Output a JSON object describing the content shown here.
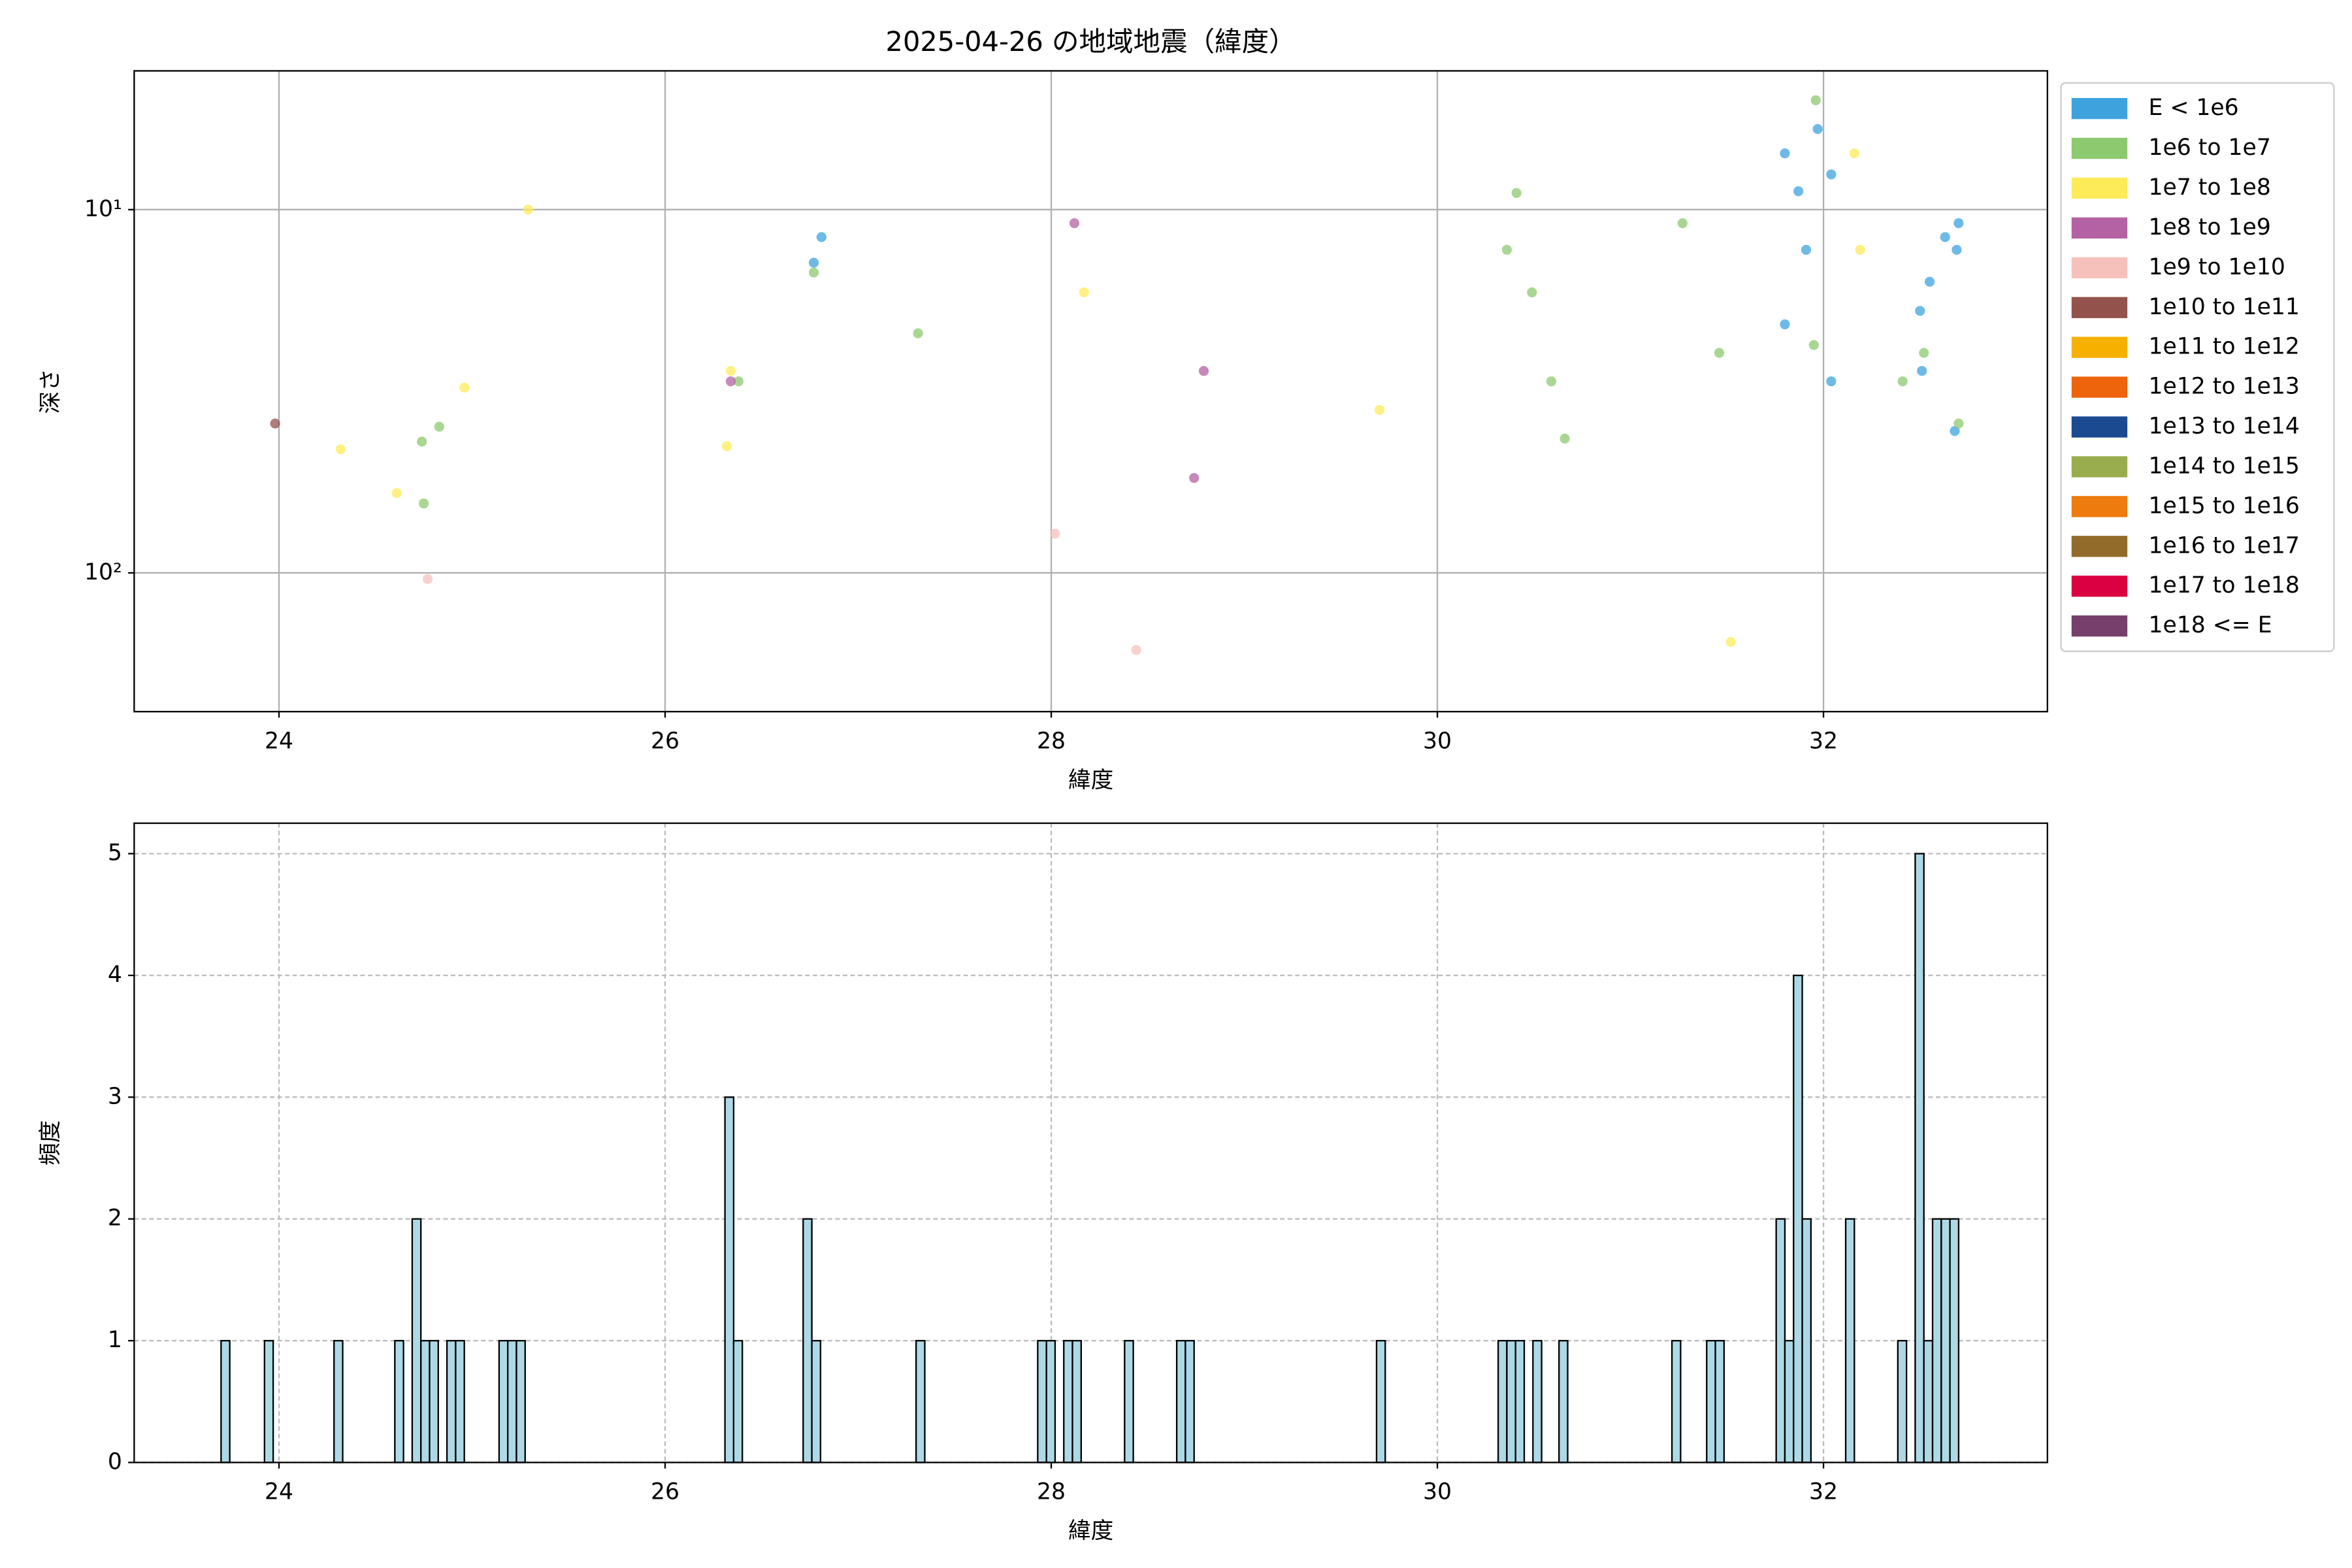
{
  "chart_data": [
    {
      "type": "scatter",
      "title": "2025-04-26 の地域地震（緯度）",
      "xlabel": "緯度",
      "ylabel": "深さ",
      "xlim": [
        23.25,
        33.16
      ],
      "xticks": [
        24,
        26,
        28,
        30,
        32
      ],
      "ylim": [
        241,
        4.15
      ],
      "yscale": "log",
      "yticks": [
        {
          "value": 10,
          "label": "10¹"
        },
        {
          "value": 100,
          "label": "10²"
        }
      ],
      "grid": true,
      "legend": "outside-right",
      "series": [
        {
          "name": "E < 1e6",
          "color": "#3ea3dd",
          "x": [
            26.77,
            26.81,
            31.8,
            31.97,
            31.87,
            32.04,
            31.91,
            31.8,
            32.04,
            32.63,
            32.7,
            32.69,
            32.55,
            32.5,
            32.51,
            32.68
          ],
          "values": [
            14.0,
            11.9,
            7.0,
            6.0,
            8.9,
            8.0,
            12.9,
            20.7,
            29.7,
            11.9,
            10.9,
            12.9,
            15.8,
            19.0,
            27.8,
            40.7
          ]
        },
        {
          "name": "1e6 to 1e7",
          "color": "#8cc96f",
          "x": [
            24.74,
            24.83,
            24.75,
            26.38,
            26.77,
            27.31,
            30.36,
            30.41,
            30.49,
            30.59,
            30.66,
            31.27,
            31.46,
            31.96,
            31.95,
            32.41,
            32.52,
            32.7
          ],
          "values": [
            43.5,
            39.6,
            64.4,
            29.7,
            14.9,
            21.9,
            12.9,
            9.0,
            16.9,
            29.7,
            42.7,
            10.9,
            24.8,
            5.0,
            23.6,
            29.7,
            24.8,
            38.8
          ]
        },
        {
          "name": "1e7 to 1e8",
          "color": "#fdeb5a",
          "x": [
            25.29,
            24.96,
            24.32,
            24.61,
            26.34,
            26.32,
            28.17,
            29.7,
            31.52,
            32.16,
            32.19
          ],
          "values": [
            10.0,
            30.9,
            45.7,
            60.3,
            27.8,
            44.8,
            16.9,
            35.6,
            155,
            7.0,
            12.9
          ]
        },
        {
          "name": "1e8 to 1e9",
          "color": "#b462a3",
          "x": [
            26.34,
            28.12,
            28.79,
            28.74
          ],
          "values": [
            29.7,
            10.9,
            27.8,
            54.8
          ]
        },
        {
          "name": "1e9 to 1e10",
          "color": "#f6c1bb",
          "x": [
            24.77,
            28.02,
            28.44
          ],
          "values": [
            104,
            78.0,
            163
          ]
        },
        {
          "name": "1e10 to 1e11",
          "color": "#94524c",
          "x": [
            23.98
          ],
          "values": [
            38.8
          ]
        },
        {
          "name": "1e11 to 1e12",
          "color": "#f6b100",
          "x": [],
          "values": []
        },
        {
          "name": "1e12 to 1e13",
          "color": "#ee640c",
          "x": [],
          "values": []
        },
        {
          "name": "1e13 to 1e14",
          "color": "#1c4a91",
          "x": [],
          "values": []
        },
        {
          "name": "1e14 to 1e15",
          "color": "#9aad4e",
          "x": [],
          "values": []
        },
        {
          "name": "1e15 to 1e16",
          "color": "#ee7b0e",
          "x": [],
          "values": []
        },
        {
          "name": "1e16 to 1e17",
          "color": "#926a2a",
          "x": [],
          "values": []
        },
        {
          "name": "1e17 to 1e18",
          "color": "#db0041",
          "x": [],
          "values": []
        },
        {
          "name": "1e18 <= E",
          "color": "#773f6b",
          "x": [],
          "values": []
        }
      ]
    },
    {
      "type": "histogram",
      "xlabel": "緯度",
      "ylabel": "頻度",
      "color": "#add8e6",
      "xlim": [
        23.25,
        33.16
      ],
      "xticks": [
        24,
        26,
        28,
        30,
        32
      ],
      "ylim": [
        0,
        5.25
      ],
      "yticks": [
        0,
        1,
        2,
        3,
        4,
        5
      ],
      "grid": true,
      "bins": [
        23.7,
        23.745,
        23.79,
        23.835,
        23.88,
        23.925,
        23.97,
        24.015,
        24.06,
        24.105,
        24.15,
        24.195,
        24.24,
        24.285,
        24.33,
        24.375,
        24.42,
        24.465,
        24.51,
        24.555,
        24.6,
        24.645,
        24.69,
        24.735,
        24.78,
        24.825,
        24.87,
        24.915,
        24.96,
        25.005,
        25.05,
        25.095,
        25.14,
        25.185,
        25.23,
        25.275,
        25.32,
        25.365,
        25.41,
        25.455,
        25.5,
        25.545,
        25.59,
        25.635,
        25.68,
        25.725,
        25.77,
        25.815,
        25.86,
        25.905,
        25.95,
        25.995,
        26.04,
        26.085,
        26.13,
        26.175,
        26.22,
        26.265,
        26.31,
        26.355,
        26.4,
        26.445,
        26.49,
        26.535,
        26.58,
        26.625,
        26.67,
        26.715,
        26.76,
        26.805,
        26.85,
        26.895,
        26.94,
        26.985,
        27.03,
        27.075,
        27.12,
        27.165,
        27.21,
        27.255,
        27.3,
        27.345,
        27.39,
        27.435,
        27.48,
        27.525,
        27.57,
        27.615,
        27.66,
        27.705,
        27.75,
        27.795,
        27.84,
        27.885,
        27.93,
        27.975,
        28.02,
        28.065,
        28.11,
        28.155,
        28.2,
        28.245,
        28.29,
        28.335,
        28.38,
        28.425,
        28.47,
        28.515,
        28.56,
        28.605,
        28.65,
        28.695,
        28.74,
        28.785,
        28.83,
        28.875,
        28.92,
        28.965,
        29.01,
        29.055,
        29.1,
        29.145,
        29.19,
        29.235,
        29.28,
        29.325,
        29.37,
        29.415,
        29.46,
        29.505,
        29.55,
        29.595,
        29.64,
        29.685,
        29.73,
        29.775,
        29.82,
        29.865,
        29.91,
        29.955,
        30.0,
        30.045,
        30.09,
        30.135,
        30.18,
        30.225,
        30.27,
        30.315,
        30.36,
        30.405,
        30.45,
        30.495,
        30.54,
        30.585,
        30.63,
        30.675,
        30.72,
        30.765,
        30.81,
        30.855,
        30.9,
        30.945,
        30.99,
        31.035,
        31.08,
        31.125,
        31.17,
        31.215,
        31.26,
        31.305,
        31.35,
        31.395,
        31.44,
        31.485,
        31.53,
        31.575,
        31.62,
        31.665,
        31.71,
        31.755,
        31.8,
        31.845,
        31.89,
        31.935,
        31.98,
        32.025,
        32.07,
        32.115,
        32.16,
        32.205,
        32.25,
        32.295,
        32.34,
        32.385,
        32.43,
        32.475,
        32.52,
        32.565,
        32.61,
        32.655,
        32.7
      ],
      "values": [
        1,
        0,
        0,
        0,
        0,
        1,
        0,
        0,
        0,
        0,
        0,
        0,
        0,
        1,
        0,
        0,
        0,
        0,
        0,
        0,
        1,
        0,
        2,
        1,
        1,
        0,
        1,
        1,
        0,
        0,
        0,
        0,
        1,
        1,
        1,
        0,
        0,
        0,
        0,
        0,
        0,
        0,
        0,
        0,
        0,
        0,
        0,
        0,
        0,
        0,
        0,
        0,
        0,
        0,
        0,
        0,
        0,
        0,
        3,
        1,
        0,
        0,
        0,
        0,
        0,
        0,
        0,
        2,
        1,
        0,
        0,
        0,
        0,
        0,
        0,
        0,
        0,
        0,
        0,
        0,
        1,
        0,
        0,
        0,
        0,
        0,
        0,
        0,
        0,
        0,
        0,
        0,
        0,
        0,
        1,
        1,
        0,
        1,
        1,
        0,
        0,
        0,
        0,
        0,
        1,
        0,
        0,
        0,
        0,
        0,
        1,
        1,
        0,
        0,
        0,
        0,
        0,
        0,
        0,
        0,
        0,
        0,
        0,
        0,
        0,
        0,
        0,
        0,
        0,
        0,
        0,
        0,
        0,
        1,
        0,
        0,
        0,
        0,
        0,
        0,
        0,
        0,
        0,
        0,
        0,
        0,
        0,
        1,
        1,
        1,
        0,
        1,
        0,
        0,
        1,
        0,
        0,
        0,
        0,
        0,
        0,
        0,
        0,
        0,
        0,
        0,
        0,
        1,
        0,
        0,
        0,
        1,
        1,
        0,
        0,
        0,
        0,
        0,
        0,
        2,
        1,
        4,
        2,
        0,
        0,
        0,
        0,
        2,
        0,
        0,
        0,
        0,
        0,
        1,
        0,
        5,
        1,
        2,
        2,
        2
      ]
    }
  ]
}
